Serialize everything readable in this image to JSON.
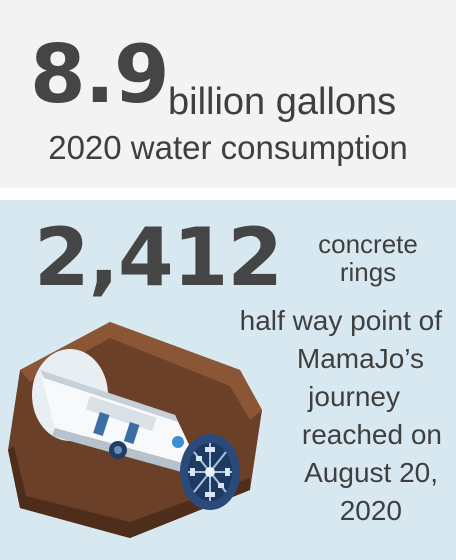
{
  "water": {
    "value": "8.9",
    "unit": "billion gallons",
    "caption": "2020 water consumption"
  },
  "rings": {
    "value": "2,412",
    "unit_line1": "concrete",
    "unit_line2": "rings",
    "description_lines": [
      "half way point of",
      "MamaJo’s",
      "journey",
      "reached on",
      "August 20,",
      "2020"
    ]
  },
  "colors": {
    "top_panel": "#f3f3f3",
    "bottom_panel": "#d8e8f0",
    "text": "#3f3f3f",
    "soil": "#6b4028",
    "machine_body": "#ffffff",
    "cutter_head": "#2a4a7a"
  },
  "illustration": "tunnel-boring-machine-icon"
}
